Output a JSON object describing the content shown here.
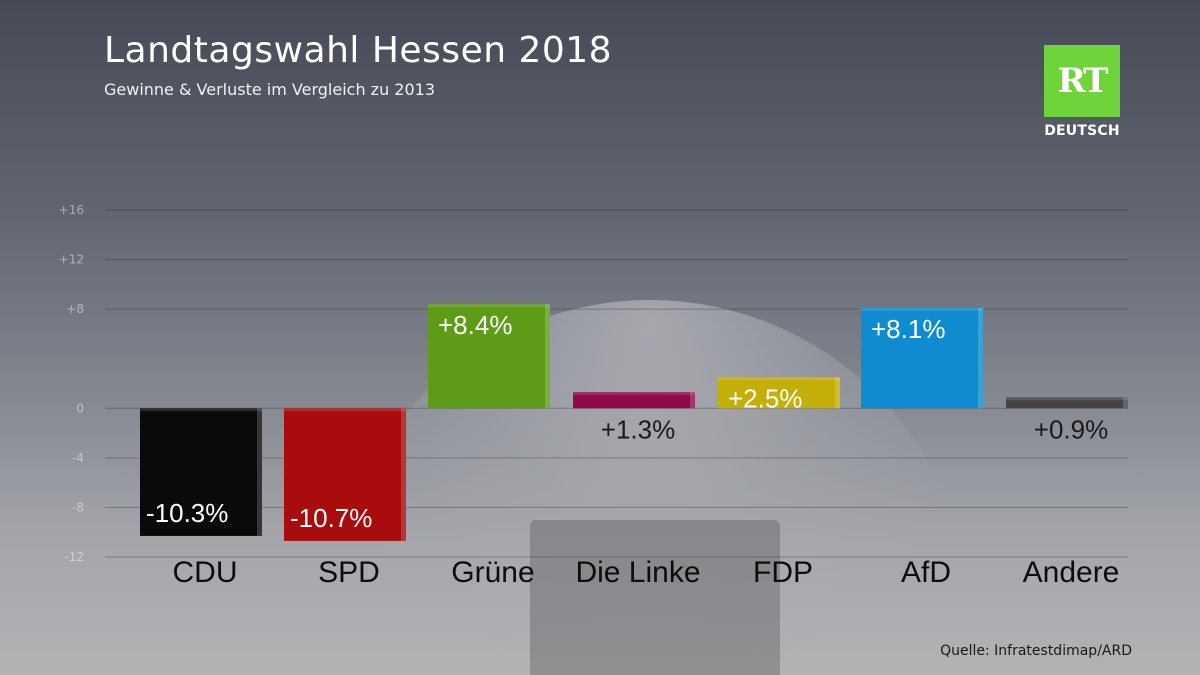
{
  "header": {
    "title": "Landtagswahl Hessen 2018",
    "subtitle": "Gewinne & Verluste im Vergleich zu 2013"
  },
  "logo": {
    "mark": "RT",
    "label": "DEUTSCH",
    "color": "#6fd43a"
  },
  "source": "Quelle: Infratestdimap/ARD",
  "chart_data": {
    "type": "bar",
    "title": "Landtagswahl Hessen 2018",
    "subtitle": "Gewinne & Verluste im Vergleich zu 2013",
    "xlabel": "",
    "ylabel": "",
    "ylim": [
      -12,
      16
    ],
    "yticks": [
      {
        "value": 16,
        "label": "+16"
      },
      {
        "value": 12,
        "label": "+12"
      },
      {
        "value": 8,
        "label": "+8"
      },
      {
        "value": 0,
        "label": "0"
      },
      {
        "value": -4,
        "label": "-4"
      },
      {
        "value": -8,
        "label": "-8"
      },
      {
        "value": -12,
        "label": "-12"
      }
    ],
    "grid": true,
    "categories": [
      "CDU",
      "SPD",
      "Grüne",
      "Die Linke",
      "FDP",
      "AfD",
      "Andere"
    ],
    "values": [
      -10.3,
      -10.7,
      8.4,
      1.3,
      2.5,
      8.1,
      0.9
    ],
    "labels": [
      "-10.3%",
      "-10.7%",
      "+8.4%",
      "+1.3%",
      "+2.5%",
      "+8.1%",
      "+0.9%"
    ],
    "colors": [
      "#0a0a0a",
      "#a80c0c",
      "#5e9b17",
      "#8e0a4a",
      "#c4ae08",
      "#0f8bd0",
      "#444444"
    ]
  }
}
